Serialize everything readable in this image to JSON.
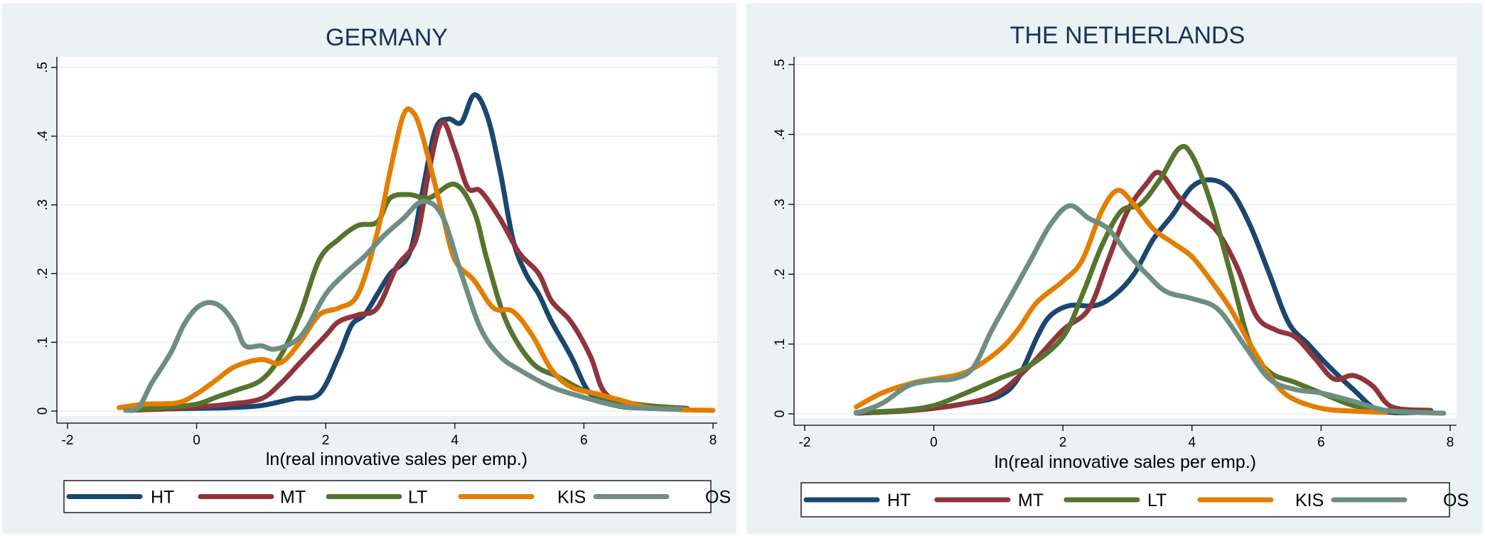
{
  "chart_data": [
    {
      "type": "line",
      "title": "GERMANY",
      "xlabel": "ln(real innovative sales per emp.)",
      "ylabel": "",
      "xlim": [
        -2,
        8
      ],
      "ylim": [
        0,
        0.5
      ],
      "x_ticks": [
        "-2",
        "0",
        "2",
        "4",
        "6",
        "8"
      ],
      "y_ticks": [
        "0",
        ".1",
        ".2",
        ".3",
        ".4",
        ".5"
      ],
      "grid": true,
      "legend_position": "bottom",
      "series": [
        {
          "name": "HT",
          "color": "#1a476f",
          "points": [
            [
              -1,
              0.002
            ],
            [
              -0.5,
              0.003
            ],
            [
              0,
              0.004
            ],
            [
              0.5,
              0.005
            ],
            [
              1,
              0.008
            ],
            [
              1.5,
              0.018
            ],
            [
              1.9,
              0.025
            ],
            [
              2.2,
              0.08
            ],
            [
              2.4,
              0.125
            ],
            [
              2.6,
              0.14
            ],
            [
              2.8,
              0.17
            ],
            [
              3,
              0.2
            ],
            [
              3.3,
              0.23
            ],
            [
              3.5,
              0.32
            ],
            [
              3.7,
              0.41
            ],
            [
              3.9,
              0.425
            ],
            [
              4.1,
              0.42
            ],
            [
              4.3,
              0.46
            ],
            [
              4.5,
              0.43
            ],
            [
              4.7,
              0.35
            ],
            [
              4.9,
              0.25
            ],
            [
              5.1,
              0.2
            ],
            [
              5.3,
              0.17
            ],
            [
              5.5,
              0.13
            ],
            [
              5.8,
              0.08
            ],
            [
              6.1,
              0.025
            ],
            [
              6.5,
              0.008
            ],
            [
              7,
              0.004
            ],
            [
              7.5,
              0.003
            ]
          ]
        },
        {
          "name": "MT",
          "color": "#90353b",
          "points": [
            [
              -1.1,
              0.001
            ],
            [
              -0.5,
              0.003
            ],
            [
              0,
              0.006
            ],
            [
              0.5,
              0.01
            ],
            [
              1,
              0.018
            ],
            [
              1.3,
              0.04
            ],
            [
              1.6,
              0.07
            ],
            [
              2,
              0.11
            ],
            [
              2.2,
              0.13
            ],
            [
              2.5,
              0.14
            ],
            [
              2.8,
              0.15
            ],
            [
              3.1,
              0.21
            ],
            [
              3.4,
              0.25
            ],
            [
              3.6,
              0.35
            ],
            [
              3.8,
              0.42
            ],
            [
              4,
              0.38
            ],
            [
              4.2,
              0.325
            ],
            [
              4.4,
              0.32
            ],
            [
              4.7,
              0.28
            ],
            [
              5,
              0.23
            ],
            [
              5.3,
              0.2
            ],
            [
              5.5,
              0.16
            ],
            [
              5.8,
              0.13
            ],
            [
              6.1,
              0.08
            ],
            [
              6.3,
              0.03
            ],
            [
              6.6,
              0.01
            ],
            [
              7,
              0.005
            ],
            [
              7.5,
              0.004
            ]
          ]
        },
        {
          "name": "LT",
          "color": "#55752f",
          "points": [
            [
              -1.1,
              0.002
            ],
            [
              -0.5,
              0.005
            ],
            [
              0,
              0.01
            ],
            [
              0.3,
              0.02
            ],
            [
              0.6,
              0.03
            ],
            [
              1,
              0.045
            ],
            [
              1.3,
              0.08
            ],
            [
              1.6,
              0.14
            ],
            [
              1.9,
              0.22
            ],
            [
              2.2,
              0.25
            ],
            [
              2.5,
              0.27
            ],
            [
              2.8,
              0.275
            ],
            [
              3,
              0.31
            ],
            [
              3.3,
              0.315
            ],
            [
              3.6,
              0.31
            ],
            [
              4,
              0.33
            ],
            [
              4.3,
              0.29
            ],
            [
              4.5,
              0.22
            ],
            [
              4.8,
              0.13
            ],
            [
              5.2,
              0.07
            ],
            [
              5.6,
              0.05
            ],
            [
              6,
              0.03
            ],
            [
              6.5,
              0.015
            ],
            [
              7,
              0.008
            ],
            [
              7.6,
              0.004
            ]
          ]
        },
        {
          "name": "KIS",
          "color": "#e37e00",
          "points": [
            [
              -1.2,
              0.005
            ],
            [
              -0.8,
              0.01
            ],
            [
              -0.3,
              0.012
            ],
            [
              0,
              0.025
            ],
            [
              0.3,
              0.045
            ],
            [
              0.6,
              0.065
            ],
            [
              1,
              0.075
            ],
            [
              1.3,
              0.07
            ],
            [
              1.6,
              0.1
            ],
            [
              1.9,
              0.14
            ],
            [
              2.2,
              0.15
            ],
            [
              2.5,
              0.17
            ],
            [
              2.8,
              0.26
            ],
            [
              3,
              0.35
            ],
            [
              3.2,
              0.43
            ],
            [
              3.35,
              0.435
            ],
            [
              3.5,
              0.4
            ],
            [
              3.8,
              0.29
            ],
            [
              4,
              0.22
            ],
            [
              4.3,
              0.19
            ],
            [
              4.6,
              0.15
            ],
            [
              4.9,
              0.145
            ],
            [
              5.2,
              0.11
            ],
            [
              5.5,
              0.06
            ],
            [
              5.8,
              0.035
            ],
            [
              6.2,
              0.025
            ],
            [
              6.6,
              0.015
            ],
            [
              7,
              0.005
            ],
            [
              7.5,
              0.002
            ],
            [
              8,
              0.001
            ]
          ]
        },
        {
          "name": "OS",
          "color": "#6e8e84",
          "points": [
            [
              -1.1,
              0.001
            ],
            [
              -0.9,
              0.005
            ],
            [
              -0.7,
              0.04
            ],
            [
              -0.4,
              0.085
            ],
            [
              -0.2,
              0.125
            ],
            [
              0,
              0.15
            ],
            [
              0.2,
              0.158
            ],
            [
              0.4,
              0.15
            ],
            [
              0.6,
              0.125
            ],
            [
              0.75,
              0.095
            ],
            [
              1,
              0.095
            ],
            [
              1.2,
              0.09
            ],
            [
              1.5,
              0.1
            ],
            [
              1.7,
              0.12
            ],
            [
              2,
              0.17
            ],
            [
              2.3,
              0.2
            ],
            [
              2.6,
              0.225
            ],
            [
              2.9,
              0.255
            ],
            [
              3.2,
              0.28
            ],
            [
              3.5,
              0.305
            ],
            [
              3.8,
              0.285
            ],
            [
              4.1,
              0.2
            ],
            [
              4.4,
              0.12
            ],
            [
              4.7,
              0.08
            ],
            [
              5,
              0.06
            ],
            [
              5.5,
              0.035
            ],
            [
              6,
              0.02
            ],
            [
              6.5,
              0.008
            ],
            [
              7,
              0.004
            ],
            [
              7.5,
              0.003
            ]
          ]
        }
      ]
    },
    {
      "type": "line",
      "title": "THE NETHERLANDS",
      "xlabel": "ln(real innovative sales per emp.)",
      "ylabel": "",
      "xlim": [
        -2,
        8
      ],
      "ylim": [
        0,
        0.5
      ],
      "x_ticks": [
        "-2",
        "0",
        "2",
        "4",
        "6",
        "8"
      ],
      "y_ticks": [
        "0",
        ".1",
        ".2",
        ".3",
        ".4",
        ".5"
      ],
      "grid": true,
      "legend_position": "bottom",
      "series": [
        {
          "name": "HT",
          "color": "#1a476f",
          "points": [
            [
              -1.2,
              0.001
            ],
            [
              -0.5,
              0.004
            ],
            [
              0,
              0.008
            ],
            [
              0.5,
              0.015
            ],
            [
              1,
              0.025
            ],
            [
              1.3,
              0.05
            ],
            [
              1.6,
              0.11
            ],
            [
              1.8,
              0.14
            ],
            [
              2.1,
              0.155
            ],
            [
              2.5,
              0.155
            ],
            [
              2.8,
              0.17
            ],
            [
              3.1,
              0.2
            ],
            [
              3.4,
              0.25
            ],
            [
              3.7,
              0.285
            ],
            [
              4,
              0.325
            ],
            [
              4.3,
              0.335
            ],
            [
              4.6,
              0.32
            ],
            [
              4.9,
              0.27
            ],
            [
              5.2,
              0.2
            ],
            [
              5.5,
              0.13
            ],
            [
              5.8,
              0.1
            ],
            [
              6.1,
              0.07
            ],
            [
              6.5,
              0.035
            ],
            [
              6.9,
              0.005
            ],
            [
              7.5,
              0.002
            ]
          ]
        },
        {
          "name": "MT",
          "color": "#90353b",
          "points": [
            [
              -1.2,
              0.001
            ],
            [
              -0.5,
              0.004
            ],
            [
              0,
              0.008
            ],
            [
              0.5,
              0.015
            ],
            [
              1,
              0.03
            ],
            [
              1.5,
              0.07
            ],
            [
              2,
              0.12
            ],
            [
              2.4,
              0.15
            ],
            [
              2.7,
              0.22
            ],
            [
              3,
              0.29
            ],
            [
              3.3,
              0.33
            ],
            [
              3.5,
              0.345
            ],
            [
              3.8,
              0.31
            ],
            [
              4.1,
              0.285
            ],
            [
              4.4,
              0.26
            ],
            [
              4.7,
              0.21
            ],
            [
              5,
              0.14
            ],
            [
              5.3,
              0.12
            ],
            [
              5.6,
              0.11
            ],
            [
              5.9,
              0.08
            ],
            [
              6.2,
              0.05
            ],
            [
              6.5,
              0.055
            ],
            [
              6.8,
              0.04
            ],
            [
              7.1,
              0.01
            ],
            [
              7.7,
              0.005
            ]
          ]
        },
        {
          "name": "LT",
          "color": "#55752f",
          "points": [
            [
              -1.2,
              0.002
            ],
            [
              -0.5,
              0.005
            ],
            [
              0,
              0.012
            ],
            [
              0.5,
              0.03
            ],
            [
              1,
              0.05
            ],
            [
              1.5,
              0.07
            ],
            [
              2,
              0.11
            ],
            [
              2.3,
              0.17
            ],
            [
              2.6,
              0.24
            ],
            [
              2.9,
              0.29
            ],
            [
              3.2,
              0.3
            ],
            [
              3.5,
              0.335
            ],
            [
              3.8,
              0.38
            ],
            [
              4,
              0.37
            ],
            [
              4.3,
              0.3
            ],
            [
              4.6,
              0.2
            ],
            [
              4.9,
              0.1
            ],
            [
              5.2,
              0.06
            ],
            [
              5.6,
              0.045
            ],
            [
              6,
              0.03
            ],
            [
              6.5,
              0.012
            ],
            [
              7,
              0.005
            ],
            [
              7.7,
              0.002
            ]
          ]
        },
        {
          "name": "KIS",
          "color": "#e37e00",
          "points": [
            [
              -1.2,
              0.01
            ],
            [
              -0.8,
              0.03
            ],
            [
              -0.3,
              0.045
            ],
            [
              0,
              0.05
            ],
            [
              0.5,
              0.06
            ],
            [
              1,
              0.09
            ],
            [
              1.3,
              0.12
            ],
            [
              1.6,
              0.16
            ],
            [
              2,
              0.19
            ],
            [
              2.3,
              0.22
            ],
            [
              2.6,
              0.29
            ],
            [
              2.85,
              0.32
            ],
            [
              3.1,
              0.3
            ],
            [
              3.4,
              0.265
            ],
            [
              3.7,
              0.245
            ],
            [
              4,
              0.225
            ],
            [
              4.3,
              0.19
            ],
            [
              4.6,
              0.15
            ],
            [
              4.9,
              0.1
            ],
            [
              5.2,
              0.055
            ],
            [
              5.5,
              0.025
            ],
            [
              6,
              0.008
            ],
            [
              6.5,
              0.004
            ],
            [
              7,
              0.002
            ]
          ]
        },
        {
          "name": "OS",
          "color": "#6e8e84",
          "points": [
            [
              -1.2,
              0.001
            ],
            [
              -0.8,
              0.015
            ],
            [
              -0.4,
              0.04
            ],
            [
              0,
              0.048
            ],
            [
              0.3,
              0.05
            ],
            [
              0.6,
              0.065
            ],
            [
              0.9,
              0.12
            ],
            [
              1.2,
              0.17
            ],
            [
              1.5,
              0.22
            ],
            [
              1.8,
              0.27
            ],
            [
              2.1,
              0.298
            ],
            [
              2.4,
              0.28
            ],
            [
              2.7,
              0.265
            ],
            [
              3,
              0.23
            ],
            [
              3.3,
              0.2
            ],
            [
              3.6,
              0.175
            ],
            [
              4,
              0.165
            ],
            [
              4.4,
              0.15
            ],
            [
              4.8,
              0.1
            ],
            [
              5.2,
              0.05
            ],
            [
              5.6,
              0.035
            ],
            [
              6,
              0.03
            ],
            [
              6.5,
              0.018
            ],
            [
              7,
              0.005
            ],
            [
              7.5,
              0.002
            ],
            [
              7.9,
              0.001
            ]
          ]
        }
      ]
    }
  ]
}
